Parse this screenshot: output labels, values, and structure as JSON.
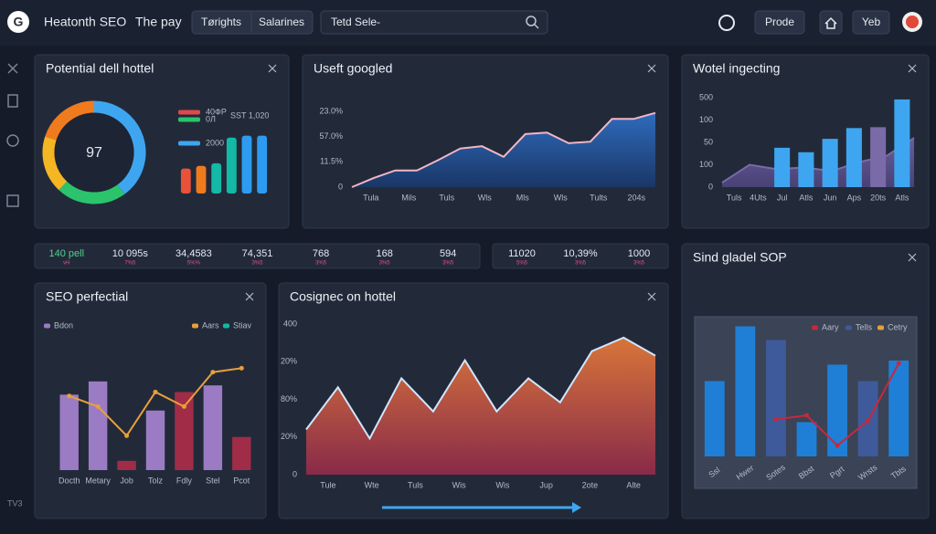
{
  "header": {
    "logo": "G",
    "title": "Heatonth SEO",
    "subtitle": "The pay",
    "tabs": [
      "Tørights",
      "Salarines"
    ],
    "search": "Tetd Sele-",
    "buttons": [
      "Prode",
      "Yeb"
    ]
  },
  "sidebar": {
    "footer": "TV3"
  },
  "panels": [
    {
      "title": "Potential dell hottel",
      "charts": [
        {
          "type": "pie",
          "center": "97",
          "values": [
            40,
            22,
            18,
            20
          ],
          "colors": [
            "#3ea6f0",
            "#2bc36b",
            "#f5b623",
            "#f07b1e"
          ]
        },
        {
          "type": "bar",
          "ylim": [
            0,
            100
          ],
          "legend": [
            {
              "label": "40ФР",
              "color": "#e0484e"
            },
            {
              "label": "0Л",
              "color": "#2bc36b"
            },
            {
              "label": "SST 1,020"
            },
            {
              "label": "2000",
              "color": "#3ea6f0"
            }
          ],
          "series": [
            {
              "type": "bar",
              "colors": [
                "#e8513a",
                "#f07b1e",
                "#14b8a6",
                "#14b8a6",
                "#2d9cf0",
                "#2d9cf0"
              ],
              "values": [
                38,
                42,
                46,
                85,
                88,
                88
              ]
            }
          ]
        }
      ]
    },
    {
      "title": "Useft googled",
      "charts": [
        {
          "type": "area",
          "ylim": [
            0,
            100
          ],
          "ylabels": [
            "23.0%",
            "57.0%",
            "11.5%",
            "0"
          ],
          "xlabels": [
            "Tula",
            "Mils",
            "Tuls",
            "Wls",
            "Mls",
            "Wls",
            "Tults",
            "204s"
          ],
          "series": [
            {
              "type": "area",
              "color": "#f3b6c4",
              "fill": [
                "#2f6fc4",
                "#1a3768"
              ],
              "values": [
                0,
                12,
                22,
                22,
                36,
                51,
                54,
                40,
                70,
                72,
                58,
                60,
                90,
                90,
                98
              ]
            }
          ]
        }
      ]
    },
    {
      "title": "Wotel ingecting",
      "charts": [
        {
          "type": "bar",
          "ylim": [
            0,
            100
          ],
          "ylabels": [
            "500",
            "100",
            "50",
            "100",
            "0"
          ],
          "xlabels": [
            "Tuls",
            "4Uts",
            "Jul",
            "Atls",
            "Jun",
            "Aps",
            "20ts",
            "Atls"
          ],
          "series": [
            {
              "type": "area",
              "color": "#7b6aa8",
              "fill": [
                "#6d5fa0",
                "#4a4377"
              ],
              "values": [
                5,
                25,
                20,
                22,
                18,
                28,
                35,
                55
              ]
            },
            {
              "type": "bar",
              "colors": [
                "#3ea6f0",
                "#3ea6f0",
                "#3ea6f0",
                "#3ea6f0",
                "#3ea6f0",
                "#3ea6f0",
                "#7b6aa8",
                "#3ea6f0"
              ],
              "values": [
                null,
                null,
                44,
                39,
                54,
                66,
                67,
                98
              ]
            }
          ]
        }
      ]
    },
    {
      "title": "SEO perfectial",
      "charts": [
        {
          "type": "bar",
          "ylim": [
            0,
            100
          ],
          "xlabels": [
            "Docth",
            "Metary",
            "Job",
            "Tolz",
            "Fdly",
            "Stel",
            "Pcot"
          ],
          "legend": [
            {
              "label": "Bdon",
              "color": "#9b7bc4"
            },
            {
              "label": "Aars",
              "color": "#e8a03a"
            },
            {
              "label": "Stiav",
              "color": "#14b8a6"
            }
          ],
          "series": [
            {
              "type": "bar",
              "colors": [
                "#9b7bc4",
                "#9b7bc4",
                "#a02c48",
                "#9b7bc4",
                "#a02c48",
                "#9b7bc4",
                "#a02c48"
              ],
              "values": [
                57,
                67,
                7,
                45,
                59,
                64,
                25
              ]
            },
            {
              "type": "line",
              "color": "#e8a03a",
              "values": [
                56,
                48,
                26,
                59,
                48,
                74,
                77
              ]
            }
          ]
        }
      ]
    },
    {
      "title": "Cosignec on hottel",
      "charts": [
        {
          "type": "area",
          "ylim": [
            0,
            100
          ],
          "ylabels": [
            "400",
            "20%",
            "80%",
            "20%",
            "0"
          ],
          "xlabels": [
            "Tule",
            "Wte",
            "Tuls",
            "Wis",
            "Wis",
            "Jup",
            "2ote",
            "Alte"
          ],
          "series": [
            {
              "type": "area",
              "color": "#cfe6ff",
              "fill": [
                "#e2793a",
                "#8e2a4a"
              ],
              "values": [
                30,
                58,
                24,
                64,
                42,
                76,
                42,
                64,
                48,
                82,
                91,
                79
              ]
            }
          ]
        }
      ]
    },
    {
      "title": "Sind gladel SOP",
      "charts": [
        {
          "type": "bar",
          "ylim": [
            0,
            100
          ],
          "xlabels": [
            "Ssl",
            "Hwer",
            "Sotes",
            "Bbst",
            "Pgrt",
            "Wrsts",
            "Tbts"
          ],
          "legend": [
            {
              "label": "Aary",
              "color": "#c8283c"
            },
            {
              "label": "Tells",
              "color": "#3f5a9a"
            },
            {
              "label": "Cetry",
              "color": "#e8a03a"
            }
          ],
          "series": [
            {
              "type": "bar",
              "colors": [
                "#1f7fd6",
                "#1f7fd6",
                "#3f5a9a",
                "#1f7fd6",
                "#1f7fd6",
                "#3f5a9a",
                "#1f7fd6"
              ],
              "values": [
                55,
                95,
                85,
                25,
                67,
                55,
                70
              ]
            },
            {
              "type": "line",
              "color": "#c8283c",
              "values": [
                null,
                null,
                27,
                30,
                8,
                26,
                68
              ]
            }
          ]
        }
      ]
    }
  ],
  "stats": [
    {
      "items": [
        {
          "value": "140 pell",
          "sub": "vH",
          "color": "#4fd18b"
        },
        {
          "value": "10 095s",
          "sub": "7%5"
        },
        {
          "value": "34,4583",
          "sub": "5%%"
        },
        {
          "value": "74,351",
          "sub": "3%5"
        },
        {
          "value": "768",
          "sub": "3%5"
        },
        {
          "value": "168",
          "sub": "3%5"
        },
        {
          "value": "594",
          "sub": "3%5"
        }
      ]
    },
    {
      "items": [
        {
          "value": "11020",
          "sub": "5%5"
        },
        {
          "value": "10,39%",
          "sub": "3%5"
        },
        {
          "value": "1000",
          "sub": "3%5"
        }
      ]
    }
  ]
}
